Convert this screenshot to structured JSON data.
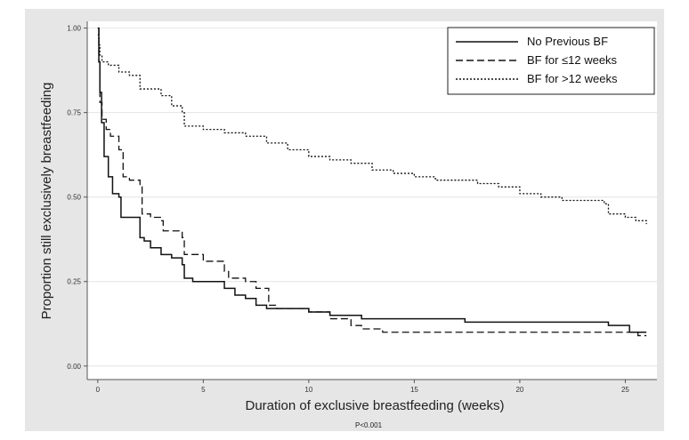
{
  "chart_data": {
    "type": "line",
    "subtype": "kaplan-meier step curves",
    "xlabel": "Duration of exclusive breastfeeding (weeks)",
    "ylabel": "Proportion still exclusively breastfeeding",
    "xlim": [
      -0.5,
      26.5
    ],
    "ylim": [
      -0.04,
      1.02
    ],
    "x_ticks": [
      0,
      5,
      10,
      15,
      20,
      25
    ],
    "x_tick_labels": [
      "0",
      "5",
      "10",
      "15",
      "20",
      "25"
    ],
    "y_ticks": [
      0,
      0.25,
      0.5,
      0.75,
      1.0
    ],
    "y_tick_labels": [
      "0.00",
      "0.25",
      "0.50",
      "0.75",
      "1.00"
    ],
    "grid": "horizontal",
    "legend_position": "top-right",
    "note": "P<0.001",
    "series": [
      {
        "name": "No Previous BF",
        "line_style": "solid",
        "color": "#111111",
        "points": [
          [
            0,
            1.0
          ],
          [
            0.05,
            0.9
          ],
          [
            0.1,
            0.81
          ],
          [
            0.18,
            0.72
          ],
          [
            0.3,
            0.62
          ],
          [
            0.5,
            0.56
          ],
          [
            0.7,
            0.51
          ],
          [
            1.0,
            0.5
          ],
          [
            1.1,
            0.44
          ],
          [
            2.0,
            0.38
          ],
          [
            2.2,
            0.37
          ],
          [
            2.5,
            0.35
          ],
          [
            3.0,
            0.33
          ],
          [
            3.5,
            0.32
          ],
          [
            4.0,
            0.3
          ],
          [
            4.1,
            0.26
          ],
          [
            4.5,
            0.25
          ],
          [
            5.0,
            0.25
          ],
          [
            6.0,
            0.23
          ],
          [
            6.5,
            0.21
          ],
          [
            7.0,
            0.2
          ],
          [
            7.5,
            0.18
          ],
          [
            8.0,
            0.17
          ],
          [
            9.0,
            0.17
          ],
          [
            10.0,
            0.16
          ],
          [
            11.0,
            0.15
          ],
          [
            12.5,
            0.14
          ],
          [
            17.0,
            0.14
          ],
          [
            17.4,
            0.13
          ],
          [
            24.0,
            0.13
          ],
          [
            24.2,
            0.12
          ],
          [
            25.0,
            0.12
          ],
          [
            25.2,
            0.1
          ],
          [
            26.0,
            0.1
          ]
        ]
      },
      {
        "name": "BF for ≤12 weeks",
        "line_style": "dashed",
        "color": "#111111",
        "points": [
          [
            0,
            1.0
          ],
          [
            0.05,
            0.9
          ],
          [
            0.1,
            0.78
          ],
          [
            0.2,
            0.73
          ],
          [
            0.4,
            0.7
          ],
          [
            0.6,
            0.68
          ],
          [
            1.0,
            0.64
          ],
          [
            1.2,
            0.56
          ],
          [
            1.5,
            0.55
          ],
          [
            2.0,
            0.53
          ],
          [
            2.1,
            0.45
          ],
          [
            2.5,
            0.44
          ],
          [
            3.0,
            0.43
          ],
          [
            3.1,
            0.4
          ],
          [
            4.0,
            0.38
          ],
          [
            4.1,
            0.33
          ],
          [
            4.5,
            0.33
          ],
          [
            5.0,
            0.31
          ],
          [
            6.0,
            0.28
          ],
          [
            6.2,
            0.26
          ],
          [
            7.0,
            0.25
          ],
          [
            7.5,
            0.23
          ],
          [
            8.0,
            0.23
          ],
          [
            8.1,
            0.18
          ],
          [
            8.5,
            0.17
          ],
          [
            10.0,
            0.16
          ],
          [
            11.0,
            0.14
          ],
          [
            12.0,
            0.12
          ],
          [
            12.5,
            0.11
          ],
          [
            13.5,
            0.1
          ],
          [
            25.5,
            0.1
          ],
          [
            25.6,
            0.09
          ],
          [
            26.0,
            0.09
          ]
        ]
      },
      {
        "name": "BF for >12 weeks",
        "line_style": "dotted",
        "color": "#111111",
        "points": [
          [
            0,
            0.98
          ],
          [
            0.05,
            0.95
          ],
          [
            0.1,
            0.92
          ],
          [
            0.2,
            0.9
          ],
          [
            0.5,
            0.89
          ],
          [
            1.0,
            0.87
          ],
          [
            1.5,
            0.86
          ],
          [
            2.0,
            0.82
          ],
          [
            3.0,
            0.8
          ],
          [
            3.5,
            0.77
          ],
          [
            4.0,
            0.75
          ],
          [
            4.1,
            0.71
          ],
          [
            5.0,
            0.7
          ],
          [
            6.0,
            0.69
          ],
          [
            7.0,
            0.68
          ],
          [
            8.0,
            0.66
          ],
          [
            9.0,
            0.64
          ],
          [
            10.0,
            0.62
          ],
          [
            11.0,
            0.61
          ],
          [
            12.0,
            0.6
          ],
          [
            13.0,
            0.58
          ],
          [
            14.0,
            0.57
          ],
          [
            15.0,
            0.56
          ],
          [
            16.0,
            0.55
          ],
          [
            18.0,
            0.54
          ],
          [
            19.0,
            0.53
          ],
          [
            20.0,
            0.51
          ],
          [
            21.0,
            0.5
          ],
          [
            22.0,
            0.49
          ],
          [
            24.0,
            0.48
          ],
          [
            24.2,
            0.45
          ],
          [
            25.0,
            0.44
          ],
          [
            25.5,
            0.43
          ],
          [
            26.0,
            0.42
          ]
        ]
      }
    ]
  },
  "colors": {
    "outer_background": "#e6e6e6",
    "plot_background": "#ffffff",
    "gridline": "#e4e4e4",
    "axis": "#555555",
    "line": "#111111"
  }
}
